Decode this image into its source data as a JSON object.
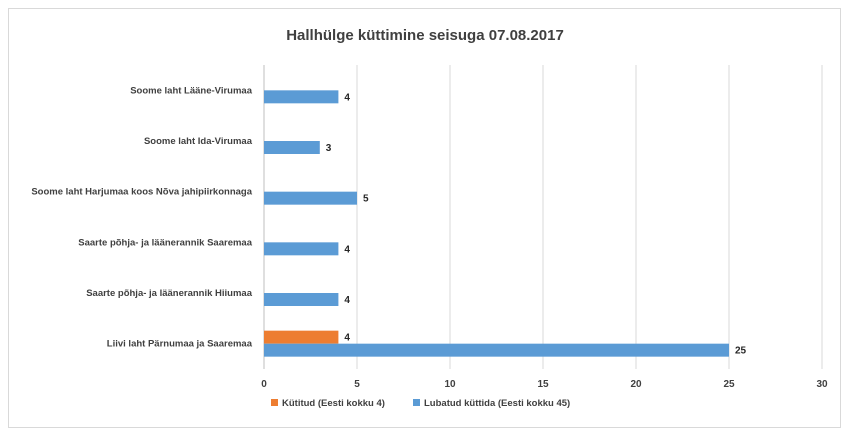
{
  "chart_data": {
    "type": "bar",
    "orientation": "horizontal",
    "title": "Hallhülge küttimine seisuga 07.08.2017",
    "categories": [
      "Soome laht Lääne-Virumaa",
      "Soome laht Ida-Virumaa",
      "Soome laht Harjumaa koos Nõva jahipiirkonnaga",
      "Saarte põhja- ja läänerannik Saaremaa",
      "Saarte põhja- ja läänerannik Hiiumaa",
      "Liivi laht Pärnumaa ja Saaremaa"
    ],
    "series": [
      {
        "name": "Kütitud (Eesti kokku 4)",
        "color": "#ed7d31",
        "values": [
          0,
          0,
          0,
          0,
          0,
          4
        ],
        "labels": [
          "",
          "",
          "",
          "",
          "",
          "4"
        ]
      },
      {
        "name": "Lubatud küttida (Eesti kokku 45)",
        "color": "#5b9bd5",
        "values": [
          4,
          3,
          5,
          4,
          4,
          25
        ],
        "labels": [
          "4",
          "3",
          "5",
          "4",
          "4",
          "25"
        ]
      }
    ],
    "xlim": [
      0,
      30
    ],
    "xticks": [
      "0",
      "5",
      "10",
      "15",
      "20",
      "25",
      "30"
    ],
    "grid": "vertical",
    "legend_position": "bottom"
  }
}
